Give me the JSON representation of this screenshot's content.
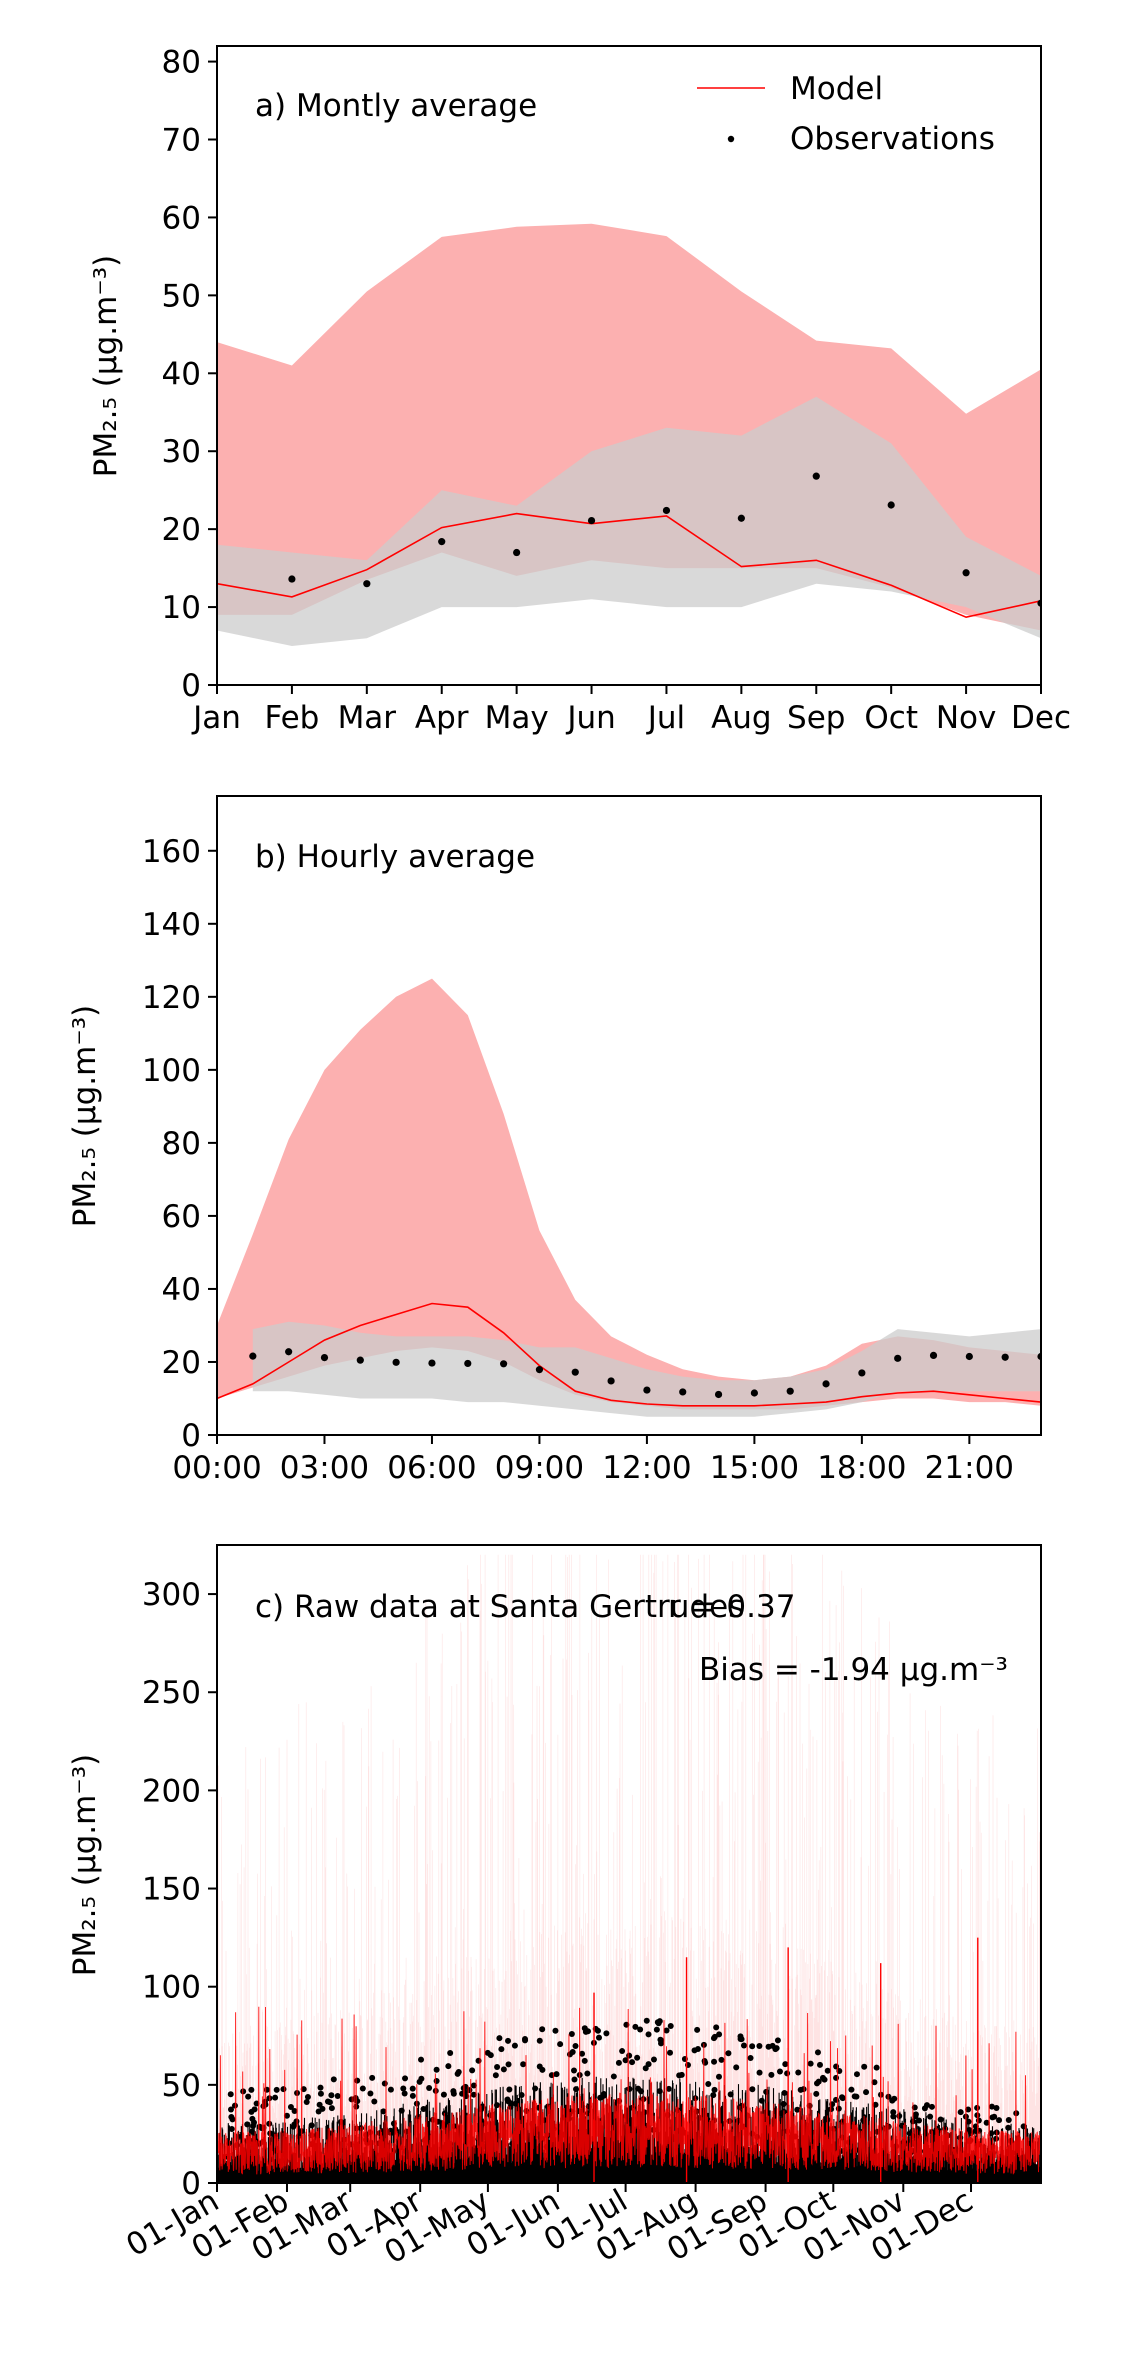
{
  "chart_data": [
    {
      "id": "a",
      "type": "line",
      "panel_label": "a) Montly average",
      "ylabel": "PM₂.₅ (μg.m⁻³)",
      "ylim": [
        0,
        82
      ],
      "yticks": [
        0,
        10,
        20,
        30,
        40,
        50,
        60,
        70,
        80
      ],
      "categories": [
        "Jan",
        "Feb",
        "Mar",
        "Apr",
        "May",
        "Jun",
        "Jul",
        "Aug",
        "Sep",
        "Oct",
        "Nov",
        "Dec"
      ],
      "legend": {
        "position": "top-right",
        "model": "Model",
        "observations": "Observations"
      },
      "colors": {
        "model": "#ff0000",
        "model_band": "#fcb0b0",
        "obs_band": "#cccccc",
        "obs": "#000000"
      },
      "model": {
        "name": "Model",
        "values": [
          13,
          11.3,
          14.8,
          20.2,
          22,
          20.7,
          21.7,
          15.2,
          16,
          12.8,
          8.7,
          10.8
        ]
      },
      "model_band": {
        "upper": [
          44,
          41,
          50.5,
          57.5,
          58.8,
          59.2,
          57.6,
          50.5,
          44.2,
          43.2,
          34.8,
          40.5
        ],
        "lower": [
          9,
          9,
          13.5,
          17,
          14,
          16,
          15,
          15,
          15,
          12.5,
          9,
          7
        ]
      },
      "observations": {
        "name": "Observations",
        "values": [
          null,
          13.6,
          13,
          18.4,
          17,
          21.1,
          22.4,
          21.4,
          26.8,
          23.1,
          14.4,
          10.5
        ]
      },
      "obs_band": {
        "upper": [
          18,
          17,
          16,
          25,
          23,
          30,
          33,
          32,
          37,
          31,
          19,
          14
        ],
        "lower": [
          7,
          5,
          6,
          10,
          10,
          11,
          10,
          10,
          13,
          12,
          10,
          6
        ]
      }
    },
    {
      "id": "b",
      "type": "line",
      "panel_label": "b) Hourly average",
      "ylabel": "PM₂.₅ (μg.m⁻³)",
      "ylim": [
        0,
        175
      ],
      "yticks": [
        0,
        20,
        40,
        60,
        80,
        100,
        120,
        140,
        160
      ],
      "xlim": [
        0,
        23
      ],
      "xtick_labels": [
        "00:00",
        "03:00",
        "06:00",
        "09:00",
        "12:00",
        "15:00",
        "18:00",
        "21:00"
      ],
      "colors": {
        "model": "#ff0000",
        "model_band": "#fcb0b0",
        "obs_band": "#cccccc",
        "obs": "#000000"
      },
      "model": {
        "name": "Model",
        "values": [
          10,
          14,
          20,
          26,
          30,
          33,
          36,
          35,
          28,
          19,
          12,
          9.5,
          8.5,
          8,
          8,
          8,
          8.5,
          9,
          10.5,
          11.5,
          12,
          11,
          10,
          9
        ]
      },
      "model_band": {
        "upper": [
          30,
          55,
          81,
          100,
          111,
          120,
          125,
          115,
          88,
          56,
          37,
          27,
          22,
          18,
          16,
          15,
          16,
          19,
          25,
          27,
          26,
          24,
          23,
          22
        ],
        "lower": [
          10,
          13,
          16,
          19,
          21,
          23,
          24,
          23,
          20,
          15,
          11,
          9,
          8,
          7,
          7,
          7,
          7,
          8,
          9,
          10,
          10,
          9,
          9,
          8
        ]
      },
      "observations": {
        "name": "Observations",
        "values": [
          null,
          21.6,
          22.8,
          21.2,
          20.5,
          19.9,
          19.7,
          19.6,
          19.5,
          17.9,
          17.2,
          14.8,
          12.3,
          11.8,
          11.1,
          11.5,
          12,
          14,
          17,
          21,
          21.8,
          21.5,
          21.3,
          21.5
        ]
      },
      "obs_band": {
        "upper": [
          null,
          29,
          31,
          30,
          28,
          27,
          27,
          27,
          26,
          24,
          24,
          21,
          18,
          16,
          15,
          15,
          16,
          18,
          23,
          29,
          28,
          27,
          28,
          29
        ],
        "lower": [
          null,
          12,
          12,
          11,
          10,
          10,
          10,
          9,
          9,
          8,
          7,
          6,
          5,
          5,
          5,
          5,
          6,
          7,
          9,
          12,
          12,
          12,
          12,
          12
        ]
      }
    },
    {
      "id": "c",
      "type": "line",
      "panel_label": "c) Raw data at Santa Gertrudes",
      "annotation_r": "r = 0.37",
      "annotation_bias": "Bias = -1.94 μg.m⁻³",
      "ylabel": "PM₂.₅ (μg.m⁻³)",
      "ylim": [
        0,
        325
      ],
      "yticks": [
        0,
        50,
        100,
        150,
        200,
        250,
        300
      ],
      "x_range_dates": [
        "01-Jan",
        "31-Dec"
      ],
      "xtick_labels": [
        "01-Jan",
        "01-Feb",
        "01-Mar",
        "01-Apr",
        "01-May",
        "01-Jun",
        "01-Jul",
        "01-Aug",
        "01-Sep",
        "01-Oct",
        "01-Nov",
        "01-Dec"
      ],
      "colors": {
        "model": "#ff0000",
        "model_band": "#fcb0b0",
        "obs": "#000000"
      },
      "notable_peaks": [
        {
          "x": "17-Jun",
          "series": "Model",
          "value": 97
        },
        {
          "x": "28-Jul",
          "series": "Model",
          "value": 115
        },
        {
          "x": "11-Sep",
          "series": "Model",
          "value": 120
        },
        {
          "x": "22-Oct",
          "series": "Model",
          "value": 112
        },
        {
          "x": "04-Dec",
          "series": "Model",
          "value": 125
        }
      ]
    }
  ]
}
